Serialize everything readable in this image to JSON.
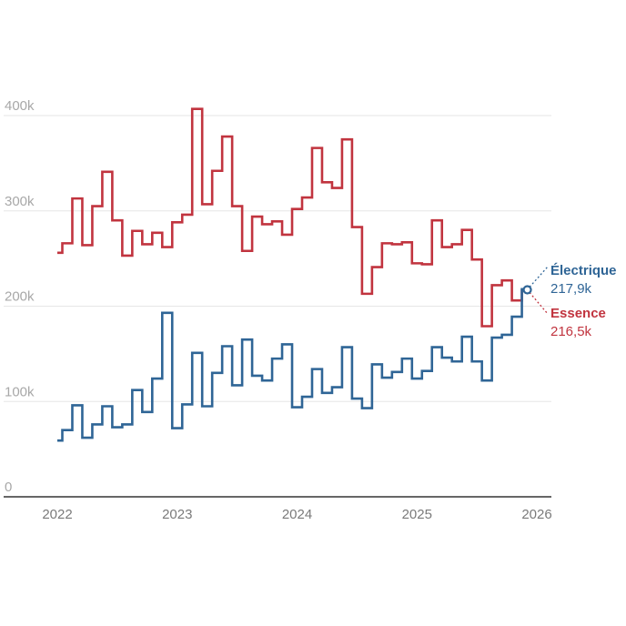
{
  "chart_data": {
    "type": "line",
    "step": "middle",
    "title": "",
    "xlabel": "",
    "ylabel": "",
    "ylim": [
      0,
      400000
    ],
    "xlim": [
      "2022-01",
      "2026-01"
    ],
    "grid": true,
    "y_ticks": [
      {
        "value": 0,
        "label": "0"
      },
      {
        "value": 100000,
        "label": "100k"
      },
      {
        "value": 200000,
        "label": "200k"
      },
      {
        "value": 300000,
        "label": "300k"
      },
      {
        "value": 400000,
        "label": "400k"
      }
    ],
    "x_ticks": [
      {
        "value": 0,
        "label": "2022"
      },
      {
        "value": 12,
        "label": "2023"
      },
      {
        "value": 24,
        "label": "2024"
      },
      {
        "value": 36,
        "label": "2025"
      },
      {
        "value": 48,
        "label": "2026"
      }
    ],
    "x_unit": "months since Jan 2022",
    "series": [
      {
        "name": "Essence",
        "color": "#c1343f",
        "end_label": "Essence",
        "end_value_label": "216,5k",
        "values": [
          256000,
          266000,
          313000,
          264000,
          305000,
          341000,
          290000,
          253000,
          279000,
          265000,
          277000,
          262000,
          288000,
          296000,
          407000,
          307000,
          342000,
          378000,
          305000,
          258000,
          294000,
          286000,
          289000,
          275000,
          302000,
          314000,
          366000,
          330000,
          324000,
          375000,
          283000,
          213000,
          241000,
          266000,
          265000,
          267000,
          245000,
          244000,
          290000,
          262000,
          265000,
          280000,
          249000,
          179000,
          222000,
          227000,
          206000,
          216500
        ]
      },
      {
        "name": "Électrique",
        "color": "#2f6596",
        "end_label": "Électrique",
        "end_value_label": "217,9k",
        "values": [
          59000,
          70000,
          96000,
          62000,
          76000,
          95000,
          73000,
          76000,
          112000,
          89000,
          124000,
          193000,
          72000,
          97000,
          151000,
          95000,
          130000,
          158000,
          117000,
          165000,
          127000,
          122000,
          145000,
          160000,
          94000,
          105000,
          134000,
          109000,
          115000,
          157000,
          103000,
          93000,
          139000,
          125000,
          131000,
          145000,
          124000,
          132000,
          157000,
          146000,
          142000,
          168000,
          142000,
          122000,
          167000,
          170000,
          189000,
          217900
        ]
      }
    ]
  }
}
